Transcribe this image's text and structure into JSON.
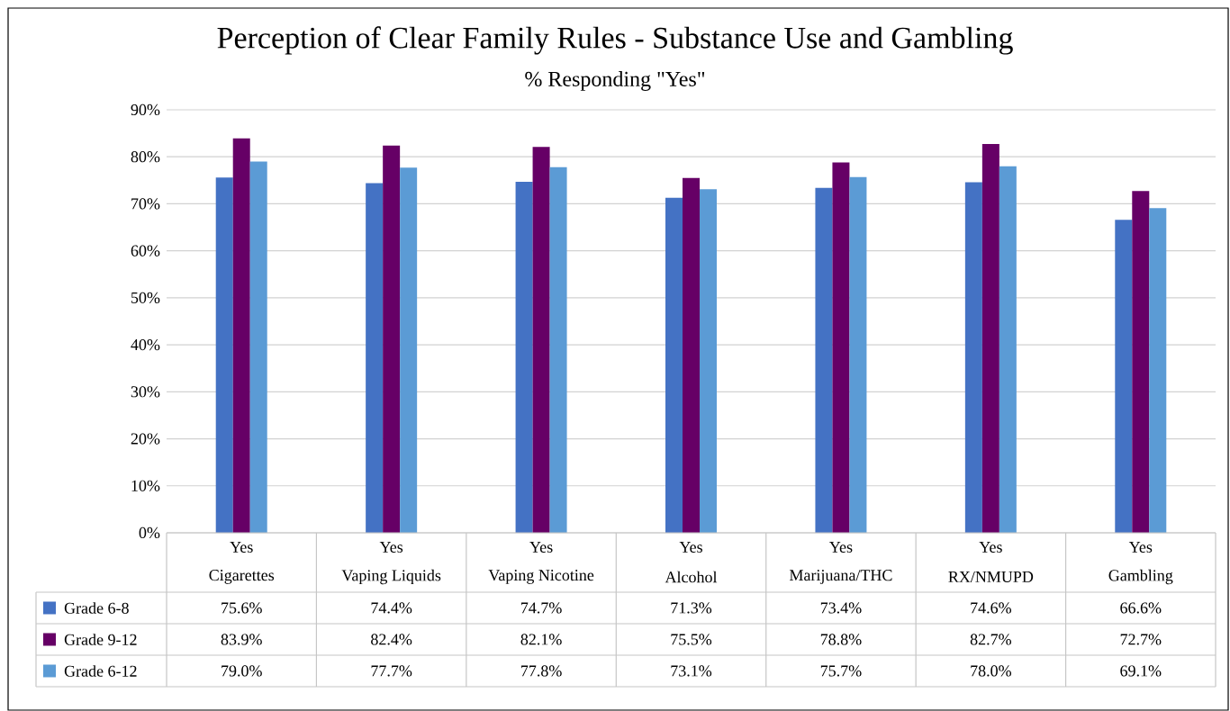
{
  "chart_data": {
    "type": "bar",
    "title": "Perception of Clear Family Rules - Substance Use and Gambling",
    "subtitle": "% Responding \"Yes\"",
    "categories": [
      "Cigarettes",
      "Vaping Liquids",
      "Vaping Nicotine",
      "Alcohol",
      "Marijuana/THC",
      "RX/NMUPD",
      "Gambling"
    ],
    "annotations": [
      "Yes",
      "Yes",
      "Yes",
      "Yes",
      "Yes",
      "Yes",
      "Yes"
    ],
    "series": [
      {
        "name": "Grade  6-8",
        "color": "#4472c4",
        "values": [
          75.6,
          74.4,
          74.7,
          71.3,
          73.4,
          74.6,
          66.6
        ],
        "value_labels": [
          "75.6%",
          "74.4%",
          "74.7%",
          "71.3%",
          "73.4%",
          "74.6%",
          "66.6%"
        ]
      },
      {
        "name": "Grade  9-12",
        "color": "#660066",
        "values": [
          83.9,
          82.4,
          82.1,
          75.5,
          78.8,
          82.7,
          72.7
        ],
        "value_labels": [
          "83.9%",
          "82.4%",
          "82.1%",
          "75.5%",
          "78.8%",
          "82.7%",
          "72.7%"
        ]
      },
      {
        "name": "Grade  6-12",
        "color": "#5b9bd5",
        "values": [
          79.0,
          77.7,
          77.8,
          73.1,
          75.7,
          78.0,
          69.1
        ],
        "value_labels": [
          "79.0%",
          "77.7%",
          "77.8%",
          "73.1%",
          "75.7%",
          "78.0%",
          "69.1%"
        ]
      }
    ],
    "ylim": [
      0,
      90
    ],
    "yticks": [
      {
        "value": 0,
        "label": "0%"
      },
      {
        "value": 10,
        "label": "10%"
      },
      {
        "value": 20,
        "label": "20%"
      },
      {
        "value": 30,
        "label": "30%"
      },
      {
        "value": 40,
        "label": "40%"
      },
      {
        "value": 50,
        "label": "50%"
      },
      {
        "value": 60,
        "label": "60%"
      },
      {
        "value": 70,
        "label": "70%"
      },
      {
        "value": 80,
        "label": "80%"
      },
      {
        "value": 90,
        "label": "90%"
      }
    ],
    "grid": "y",
    "legend": "bottom"
  }
}
